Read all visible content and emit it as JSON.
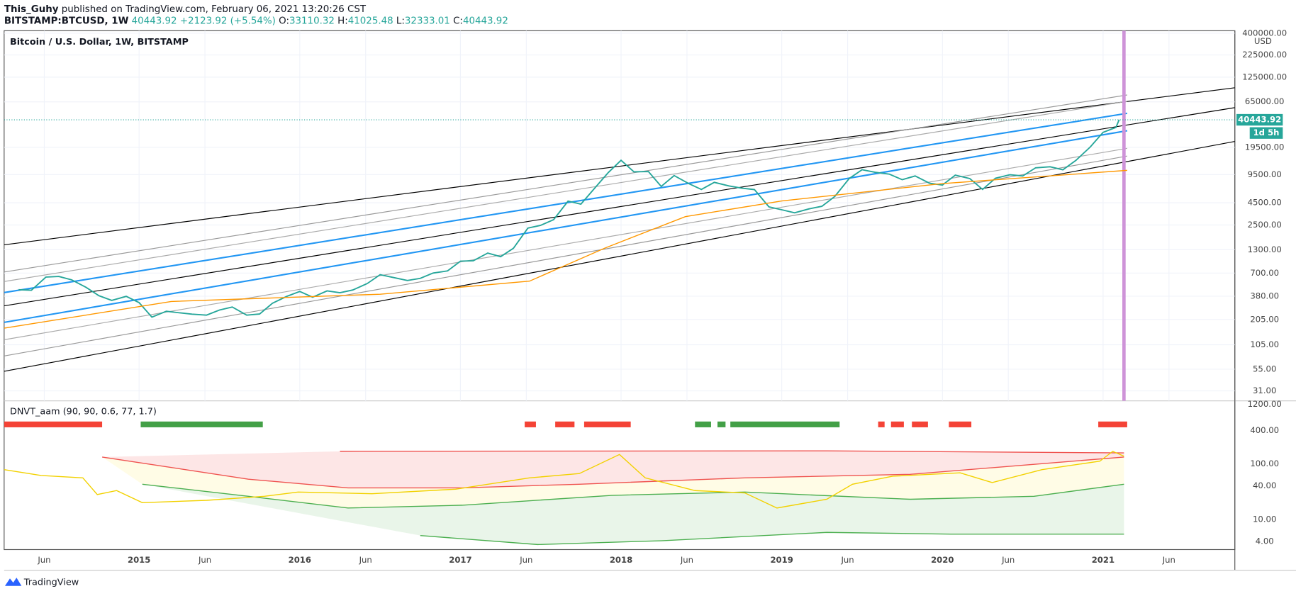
{
  "header": {
    "author": "This_Guhy",
    "published": " published on TradingView.com, February 06, 2021 13:20:26 CST",
    "symbol": "BITSTAMP:BTCUSD, 1W",
    "last": "40443.92",
    "change": "+2123.92 (+5.54%)",
    "ohlc": [
      {
        "label": "O:",
        "value": "33110.32"
      },
      {
        "label": "H:",
        "value": "41025.48"
      },
      {
        "label": "L:",
        "value": "32333.01"
      },
      {
        "label": "C:",
        "value": "40443.92"
      }
    ],
    "countdown": "1d 5h"
  },
  "chart_data": [
    {
      "type": "line",
      "title": "Bitcoin / U.S. Dollar, 1W, BITSTAMP",
      "y_unit": "USD",
      "log_scale": true,
      "grid": true,
      "xlim": [
        2014.16,
        2021.82
      ],
      "ylim": [
        23.8,
        427000
      ],
      "xticks": [
        {
          "value": 2014.41,
          "label": "Jun"
        },
        {
          "value": 2015,
          "label": "2015"
        },
        {
          "value": 2015.41,
          "label": "Jun"
        },
        {
          "value": 2016,
          "label": "2016"
        },
        {
          "value": 2016.41,
          "label": "Jun"
        },
        {
          "value": 2017,
          "label": "2017"
        },
        {
          "value": 2017.41,
          "label": "Jun"
        },
        {
          "value": 2018,
          "label": "2018"
        },
        {
          "value": 2018.41,
          "label": "Jun"
        },
        {
          "value": 2019,
          "label": "2019"
        },
        {
          "value": 2019.41,
          "label": "Jun"
        },
        {
          "value": 2020,
          "label": "2020"
        },
        {
          "value": 2020.41,
          "label": "Jun"
        },
        {
          "value": 2021,
          "label": "2021"
        },
        {
          "value": 2021.41,
          "label": "Jun"
        }
      ],
      "yticks": [
        {
          "value": 400000,
          "label": "400000.00"
        },
        {
          "value": 225000,
          "label": "225000.00"
        },
        {
          "value": 125000,
          "label": "125000.00"
        },
        {
          "value": 65000,
          "label": "65000.00"
        },
        {
          "value": 19500,
          "label": "19500.00"
        },
        {
          "value": 9500,
          "label": "9500.00"
        },
        {
          "value": 4500,
          "label": "4500.00"
        },
        {
          "value": 2500,
          "label": "2500.00"
        },
        {
          "value": 1300,
          "label": "1300.00"
        },
        {
          "value": 700,
          "label": "700.00"
        },
        {
          "value": 380,
          "label": "380.00"
        },
        {
          "value": 205,
          "label": "205.00"
        },
        {
          "value": 105,
          "label": "105.00"
        },
        {
          "value": 55,
          "label": "55.00"
        },
        {
          "value": 31,
          "label": "31.00"
        }
      ],
      "series": [
        {
          "color": "#26a69a",
          "x": [
            2014.25,
            2014.33,
            2014.42,
            2014.5,
            2014.58,
            2014.67,
            2014.75,
            2014.83,
            2014.92,
            2015.0,
            2015.08,
            2015.17,
            2015.25,
            2015.33,
            2015.42,
            2015.5,
            2015.58,
            2015.67,
            2015.75,
            2015.83,
            2015.92,
            2016.0,
            2016.08,
            2016.17,
            2016.25,
            2016.33,
            2016.42,
            2016.5,
            2016.58,
            2016.67,
            2016.75,
            2016.83,
            2016.92,
            2017.0,
            2017.08,
            2017.17,
            2017.25,
            2017.33,
            2017.42,
            2017.5,
            2017.58,
            2017.67,
            2017.75,
            2017.83,
            2017.92,
            2018.0,
            2018.08,
            2018.17,
            2018.25,
            2018.33,
            2018.42,
            2018.5,
            2018.58,
            2018.67,
            2018.75,
            2018.83,
            2018.92,
            2019.0,
            2019.08,
            2019.17,
            2019.25,
            2019.33,
            2019.42,
            2019.5,
            2019.58,
            2019.67,
            2019.75,
            2019.83,
            2019.92,
            2020.0,
            2020.08,
            2020.17,
            2020.25,
            2020.33,
            2020.42,
            2020.5,
            2020.58,
            2020.67,
            2020.75,
            2020.83,
            2020.92,
            2021.0,
            2021.08,
            2021.1
          ],
          "values": [
            450,
            445,
            630,
            640,
            585,
            480,
            385,
            340,
            378,
            320,
            218,
            255,
            245,
            236,
            230,
            263,
            285,
            230,
            237,
            315,
            378,
            430,
            370,
            437,
            416,
            448,
            531,
            670,
            624,
            575,
            609,
            700,
            742,
            960,
            970,
            1190,
            1080,
            1350,
            2300,
            2480,
            2875,
            4700,
            4340,
            6450,
            10000,
            13850,
            10200,
            10300,
            6930,
            9240,
            7500,
            6400,
            7730,
            7030,
            6630,
            6370,
            4040,
            3740,
            3450,
            3830,
            4100,
            5320,
            8570,
            10800,
            10080,
            9590,
            8290,
            9150,
            7550,
            7190,
            9350,
            8550,
            6410,
            8620,
            9450,
            9140,
            11350,
            11650,
            10780,
            13800,
            19700,
            28990,
            33100,
            40443.92
          ]
        },
        {
          "color": "#ff9800",
          "x": [
            2014.16,
            2015.2,
            2016.5,
            2017.43,
            2017.9,
            2018.4,
            2019.0,
            2020.0,
            2021.15
          ],
          "values": [
            163,
            330,
            400,
            566,
            1360,
            3120,
            4720,
            7480,
            10600
          ]
        }
      ],
      "trendlines": [
        {
          "color": "#000000",
          "x": [
            2014.16,
            2021.82
          ],
          "values": [
            1480,
            94400
          ]
        },
        {
          "color": "#999999",
          "x": [
            2014.16,
            2021.15
          ],
          "values": [
            720,
            78000
          ]
        },
        {
          "color": "#aaaaaa",
          "x": [
            2014.16,
            2021.15
          ],
          "values": [
            560,
            66000
          ]
        },
        {
          "color": "#2196f3",
          "x": [
            2014.16,
            2021.15
          ],
          "values": [
            418,
            48000
          ]
        },
        {
          "color": "#000000",
          "x": [
            2014.16,
            2021.82
          ],
          "values": [
            294,
            55800
          ]
        },
        {
          "color": "#2196f3",
          "x": [
            2014.16,
            2021.15
          ],
          "values": [
            190,
            30300
          ]
        },
        {
          "color": "#aaaaaa",
          "x": [
            2014.16,
            2021.15
          ],
          "values": [
            120,
            19000
          ]
        },
        {
          "color": "#999999",
          "x": [
            2014.16,
            2021.15
          ],
          "values": [
            78,
            15500
          ]
        },
        {
          "color": "#000000",
          "x": [
            2014.16,
            2021.82
          ],
          "values": [
            52,
            22800
          ]
        }
      ],
      "marker_x": 2021.13,
      "marker_color": "#ce93d8"
    },
    {
      "type": "line",
      "title": "DNVT_aam (90, 90, 0.6, 77, 1.7)",
      "log_scale": true,
      "xlim": [
        2014.16,
        2021.82
      ],
      "ylim": [
        2.84,
        1377
      ],
      "yticks": [
        {
          "value": 1200,
          "label": "1200.00"
        },
        {
          "value": 400,
          "label": "400.00"
        },
        {
          "value": 100,
          "label": "100.00"
        },
        {
          "value": 40,
          "label": "40.00"
        },
        {
          "value": 10,
          "label": "10.00"
        },
        {
          "value": 4,
          "label": "4.00"
        }
      ],
      "series": [
        {
          "color": "#ef5350",
          "fill": "#fde0e0",
          "fill_to": 1,
          "x": [
            2016.25,
            2019.28,
            2021.13
          ],
          "values": [
            169,
            172,
            158
          ]
        },
        {
          "color": "#ef5350",
          "fill": "#fffbe0",
          "fill_to": 2,
          "x": [
            2014.77,
            2015.68,
            2016.3,
            2017.01,
            2017.74,
            2018.77,
            2019.8,
            2021.13
          ],
          "values": [
            133,
            53,
            37,
            37,
            43,
            56,
            65,
            133
          ]
        },
        {
          "color": "#4caf50",
          "fill": "#e4f3e4",
          "fill_to": 3,
          "x": [
            2015.02,
            2015.68,
            2016.3,
            2017.01,
            2017.94,
            2018.77,
            2019.8,
            2020.57,
            2021.13
          ],
          "values": [
            43,
            26,
            16,
            18,
            27,
            31,
            23,
            26,
            43
          ]
        },
        {
          "color": "#4caf50",
          "x": [
            2016.75,
            2017.48,
            2018.25,
            2019.28,
            2020.05,
            2021.13
          ],
          "values": [
            5.1,
            3.5,
            4.1,
            5.8,
            5.4,
            5.4
          ]
        },
        {
          "color": "#f2d100",
          "x": [
            2014.16,
            2014.39,
            2014.65,
            2014.74,
            2014.86,
            2015.02,
            2015.42,
            2015.78,
            2015.99,
            2016.45,
            2016.97,
            2017.43,
            2017.74,
            2017.99,
            2018.15,
            2018.46,
            2018.77,
            2018.97,
            2019.28,
            2019.44,
            2019.69,
            2020.11,
            2020.31,
            2020.62,
            2020.98,
            2021.06,
            2021.13
          ],
          "values": [
            79,
            62,
            56,
            28,
            33,
            20,
            22,
            26,
            31,
            29,
            35,
            56,
            67,
            148,
            56,
            33,
            30,
            16,
            23,
            43,
            60,
            69,
            46,
            79,
            112,
            169,
            138
          ]
        }
      ],
      "signals": [
        {
          "color": "#f44336",
          "x": [
            2014.16,
            2014.77
          ]
        },
        {
          "color": "#43a047",
          "x": [
            2015.01,
            2015.77
          ]
        },
        {
          "color": "#f44336",
          "x": [
            2017.4,
            2017.47
          ]
        },
        {
          "color": "#f44336",
          "x": [
            2017.59,
            2017.71
          ]
        },
        {
          "color": "#f44336",
          "x": [
            2017.77,
            2018.06
          ]
        },
        {
          "color": "#43a047",
          "x": [
            2018.46,
            2018.56
          ]
        },
        {
          "color": "#43a047",
          "x": [
            2018.6,
            2018.65
          ]
        },
        {
          "color": "#43a047",
          "x": [
            2018.68,
            2019.36
          ]
        },
        {
          "color": "#f44336",
          "x": [
            2019.6,
            2019.64
          ]
        },
        {
          "color": "#f44336",
          "x": [
            2019.68,
            2019.76
          ]
        },
        {
          "color": "#f44336",
          "x": [
            2019.81,
            2019.91
          ]
        },
        {
          "color": "#f44336",
          "x": [
            2020.04,
            2020.18
          ]
        },
        {
          "color": "#f44336",
          "x": [
            2020.97,
            2021.15
          ]
        }
      ]
    }
  ],
  "branding": "TradingView"
}
